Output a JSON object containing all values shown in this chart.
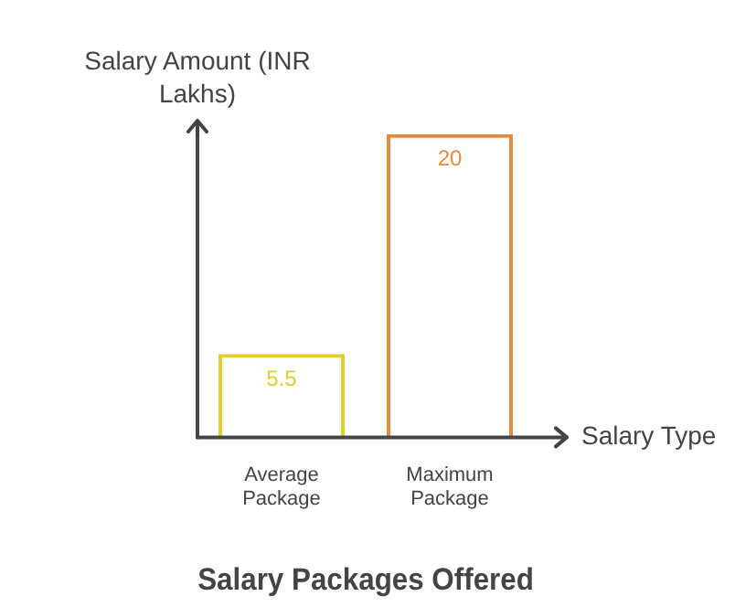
{
  "chart_data": {
    "type": "bar",
    "title": "Salary Packages Offered",
    "xlabel": "Salary Type",
    "ylabel": "Salary Amount (INR Lakhs)",
    "categories": [
      "Average Package",
      "Maximum Package"
    ],
    "values": [
      5.5,
      20
    ],
    "colors": [
      "#e2cd2e",
      "#e8893c"
    ],
    "data_labels": true
  }
}
